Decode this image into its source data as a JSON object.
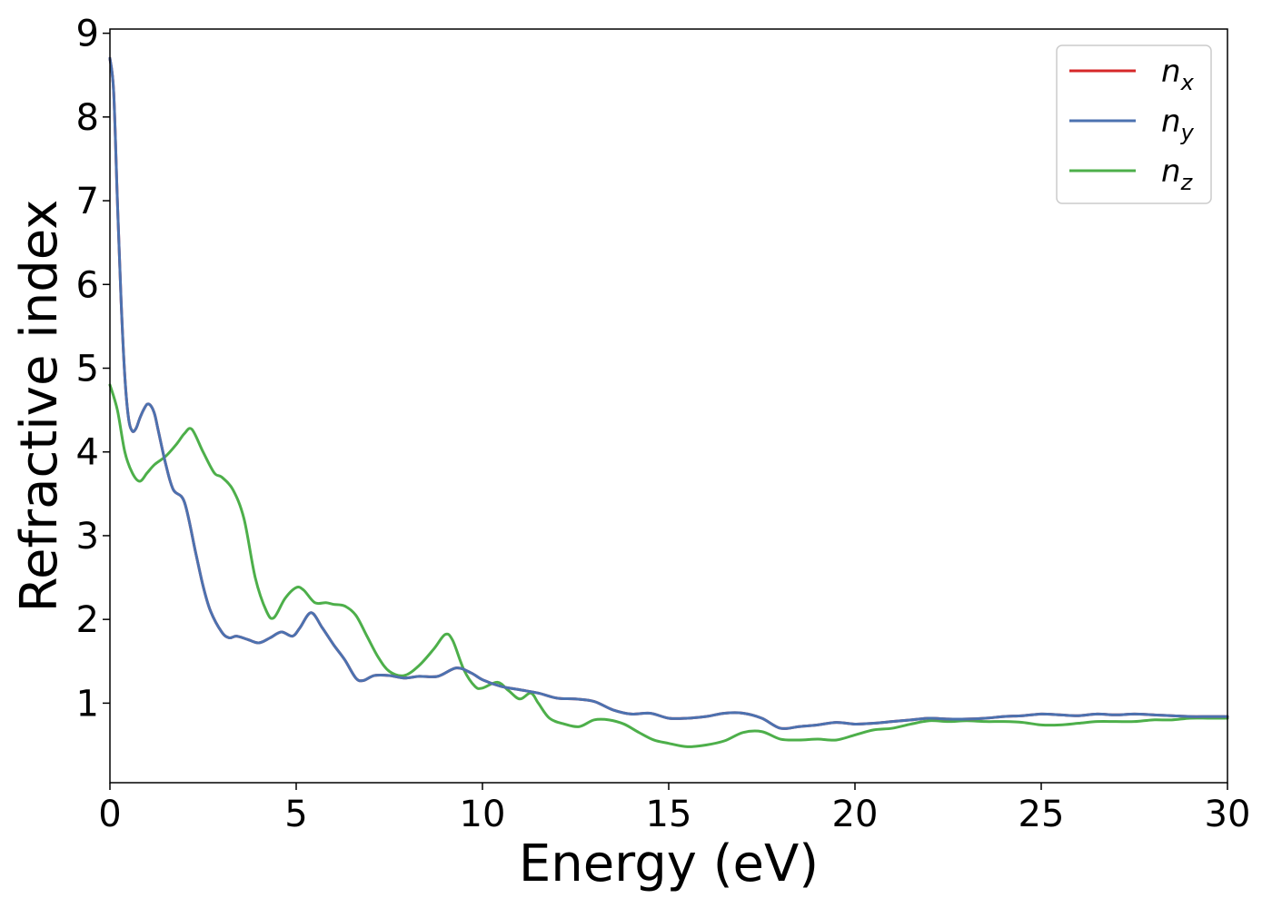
{
  "chart_data": {
    "type": "line",
    "title": "",
    "xlabel": "Energy (eV)",
    "ylabel": "Refractive index",
    "xlim": [
      0,
      30
    ],
    "ylim": [
      0.05,
      9.05
    ],
    "xticks": [
      0,
      5,
      10,
      15,
      20,
      25,
      30
    ],
    "yticks": [
      1,
      2,
      3,
      4,
      5,
      6,
      7,
      8,
      9
    ],
    "grid": false,
    "legend": {
      "placement": "top-right"
    },
    "series": [
      {
        "name": "n_x",
        "label_base": "n",
        "label_sub": "x",
        "color": "#d62728",
        "x": [
          0,
          0.1,
          0.2,
          0.3,
          0.4,
          0.5,
          0.6,
          0.7,
          0.8,
          0.9,
          1.0,
          1.1,
          1.2,
          1.3,
          1.5,
          1.7,
          2.0,
          2.3,
          2.5,
          2.7,
          3.0,
          3.2,
          3.4,
          3.7,
          4.0,
          4.3,
          4.6,
          4.9,
          5.1,
          5.4,
          5.7,
          6.0,
          6.3,
          6.6,
          6.8,
          7.1,
          7.5,
          7.9,
          8.3,
          8.8,
          9.3,
          9.7,
          10.0,
          10.5,
          11.0,
          11.5,
          12.0,
          12.5,
          13.0,
          13.5,
          14.0,
          14.5,
          15.0,
          15.5,
          16.0,
          16.5,
          17.0,
          17.5,
          18.0,
          18.5,
          19.0,
          19.5,
          20.0,
          20.5,
          21.0,
          21.5,
          22.0,
          22.5,
          23.0,
          23.5,
          24.0,
          24.5,
          25.0,
          25.5,
          26.0,
          26.5,
          27.0,
          27.5,
          28.0,
          28.5,
          29.0,
          29.5,
          30.0
        ],
        "y": [
          8.7,
          8.3,
          7.0,
          5.8,
          4.9,
          4.4,
          4.25,
          4.28,
          4.4,
          4.5,
          4.57,
          4.55,
          4.45,
          4.25,
          3.85,
          3.55,
          3.4,
          2.8,
          2.4,
          2.1,
          1.85,
          1.78,
          1.8,
          1.76,
          1.72,
          1.78,
          1.85,
          1.8,
          1.9,
          2.08,
          1.9,
          1.7,
          1.52,
          1.3,
          1.27,
          1.33,
          1.33,
          1.3,
          1.32,
          1.32,
          1.42,
          1.36,
          1.28,
          1.2,
          1.16,
          1.12,
          1.06,
          1.05,
          1.02,
          0.92,
          0.87,
          0.88,
          0.82,
          0.82,
          0.84,
          0.88,
          0.88,
          0.82,
          0.7,
          0.72,
          0.74,
          0.77,
          0.75,
          0.76,
          0.78,
          0.8,
          0.82,
          0.81,
          0.81,
          0.82,
          0.84,
          0.85,
          0.87,
          0.86,
          0.85,
          0.87,
          0.86,
          0.87,
          0.86,
          0.85,
          0.84,
          0.84,
          0.84
        ]
      },
      {
        "name": "n_y",
        "label_base": "n",
        "label_sub": "y",
        "color": "#4c72b0",
        "x": [
          0,
          0.1,
          0.2,
          0.3,
          0.4,
          0.5,
          0.6,
          0.7,
          0.8,
          0.9,
          1.0,
          1.1,
          1.2,
          1.3,
          1.5,
          1.7,
          2.0,
          2.3,
          2.5,
          2.7,
          3.0,
          3.2,
          3.4,
          3.7,
          4.0,
          4.3,
          4.6,
          4.9,
          5.1,
          5.4,
          5.7,
          6.0,
          6.3,
          6.6,
          6.8,
          7.1,
          7.5,
          7.9,
          8.3,
          8.8,
          9.3,
          9.7,
          10.0,
          10.5,
          11.0,
          11.5,
          12.0,
          12.5,
          13.0,
          13.5,
          14.0,
          14.5,
          15.0,
          15.5,
          16.0,
          16.5,
          17.0,
          17.5,
          18.0,
          18.5,
          19.0,
          19.5,
          20.0,
          20.5,
          21.0,
          21.5,
          22.0,
          22.5,
          23.0,
          23.5,
          24.0,
          24.5,
          25.0,
          25.5,
          26.0,
          26.5,
          27.0,
          27.5,
          28.0,
          28.5,
          29.0,
          29.5,
          30.0
        ],
        "y": [
          8.7,
          8.3,
          7.0,
          5.8,
          4.9,
          4.4,
          4.25,
          4.28,
          4.4,
          4.5,
          4.57,
          4.55,
          4.45,
          4.25,
          3.85,
          3.55,
          3.4,
          2.8,
          2.4,
          2.1,
          1.85,
          1.78,
          1.8,
          1.76,
          1.72,
          1.78,
          1.85,
          1.8,
          1.9,
          2.08,
          1.9,
          1.7,
          1.52,
          1.3,
          1.27,
          1.33,
          1.33,
          1.3,
          1.32,
          1.32,
          1.42,
          1.36,
          1.28,
          1.2,
          1.16,
          1.12,
          1.06,
          1.05,
          1.02,
          0.92,
          0.87,
          0.88,
          0.82,
          0.82,
          0.84,
          0.88,
          0.88,
          0.82,
          0.7,
          0.72,
          0.74,
          0.77,
          0.75,
          0.76,
          0.78,
          0.8,
          0.82,
          0.81,
          0.81,
          0.82,
          0.84,
          0.85,
          0.87,
          0.86,
          0.85,
          0.87,
          0.86,
          0.87,
          0.86,
          0.85,
          0.84,
          0.84,
          0.84
        ]
      },
      {
        "name": "n_z",
        "label_base": "n",
        "label_sub": "z",
        "color": "#4daf4a",
        "x": [
          0,
          0.2,
          0.4,
          0.6,
          0.8,
          1.0,
          1.2,
          1.5,
          1.8,
          2.0,
          2.2,
          2.5,
          2.8,
          3.0,
          3.3,
          3.6,
          3.9,
          4.2,
          4.4,
          4.7,
          5.0,
          5.2,
          5.5,
          5.8,
          6.0,
          6.3,
          6.6,
          6.9,
          7.2,
          7.5,
          7.9,
          8.3,
          8.7,
          9.0,
          9.2,
          9.5,
          9.8,
          10.0,
          10.4,
          10.7,
          11.0,
          11.3,
          11.5,
          11.8,
          12.2,
          12.6,
          13.0,
          13.4,
          13.8,
          14.2,
          14.6,
          15.0,
          15.5,
          16.0,
          16.5,
          17.0,
          17.5,
          18.0,
          18.5,
          19.0,
          19.5,
          20.0,
          20.5,
          21.0,
          21.5,
          22.0,
          22.5,
          23.0,
          23.5,
          24.0,
          24.5,
          25.0,
          25.5,
          26.0,
          26.5,
          27.0,
          27.5,
          28.0,
          28.5,
          29.0,
          29.5,
          30.0
        ],
        "y": [
          4.8,
          4.5,
          4.0,
          3.75,
          3.65,
          3.75,
          3.85,
          3.95,
          4.1,
          4.22,
          4.27,
          4.0,
          3.75,
          3.7,
          3.55,
          3.2,
          2.5,
          2.1,
          2.02,
          2.25,
          2.38,
          2.35,
          2.2,
          2.2,
          2.18,
          2.16,
          2.05,
          1.8,
          1.55,
          1.38,
          1.33,
          1.45,
          1.65,
          1.82,
          1.75,
          1.4,
          1.2,
          1.18,
          1.25,
          1.15,
          1.05,
          1.12,
          1.0,
          0.82,
          0.75,
          0.72,
          0.8,
          0.8,
          0.75,
          0.65,
          0.56,
          0.52,
          0.48,
          0.5,
          0.55,
          0.65,
          0.66,
          0.57,
          0.56,
          0.57,
          0.56,
          0.62,
          0.68,
          0.7,
          0.75,
          0.79,
          0.78,
          0.79,
          0.78,
          0.78,
          0.77,
          0.74,
          0.74,
          0.76,
          0.78,
          0.78,
          0.78,
          0.8,
          0.8,
          0.82,
          0.82,
          0.82
        ]
      }
    ]
  }
}
